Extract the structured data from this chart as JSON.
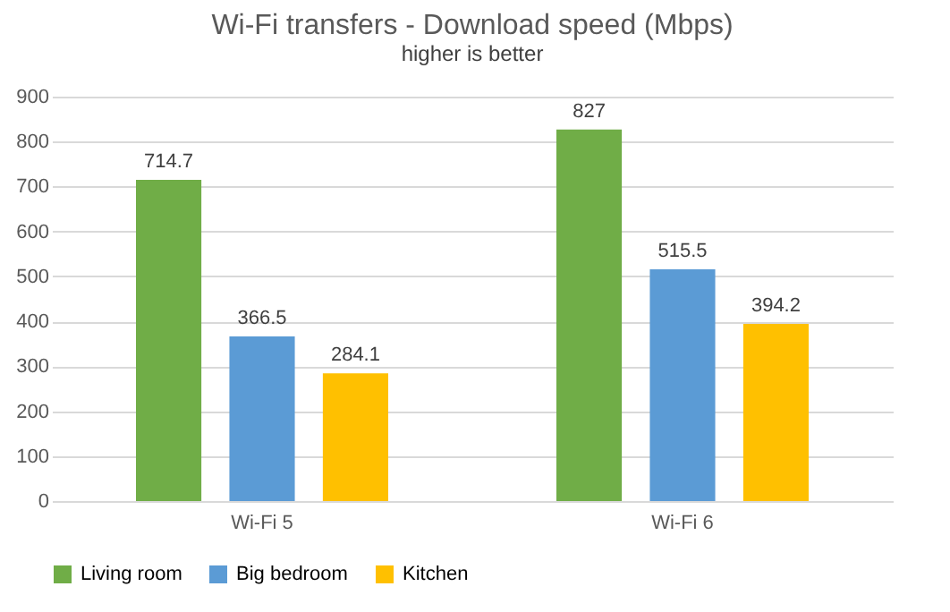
{
  "chart_data": {
    "type": "bar",
    "title": "Wi-Fi transfers - Download speed (Mbps)",
    "subtitle": "higher is better",
    "categories": [
      "Wi-Fi 5",
      "Wi-Fi 6"
    ],
    "series": [
      {
        "name": "Living room",
        "color": "#70ad47",
        "values": [
          714.7,
          827
        ]
      },
      {
        "name": "Big bedroom",
        "color": "#5b9bd5",
        "values": [
          366.5,
          515.5
        ]
      },
      {
        "name": "Kitchen",
        "color": "#ffc000",
        "values": [
          284.1,
          394.2
        ]
      }
    ],
    "ylim": [
      0,
      900
    ],
    "yticks": [
      0,
      100,
      200,
      300,
      400,
      500,
      600,
      700,
      800,
      900
    ],
    "grid": "y",
    "legend": "bottom",
    "data_labels": true
  }
}
